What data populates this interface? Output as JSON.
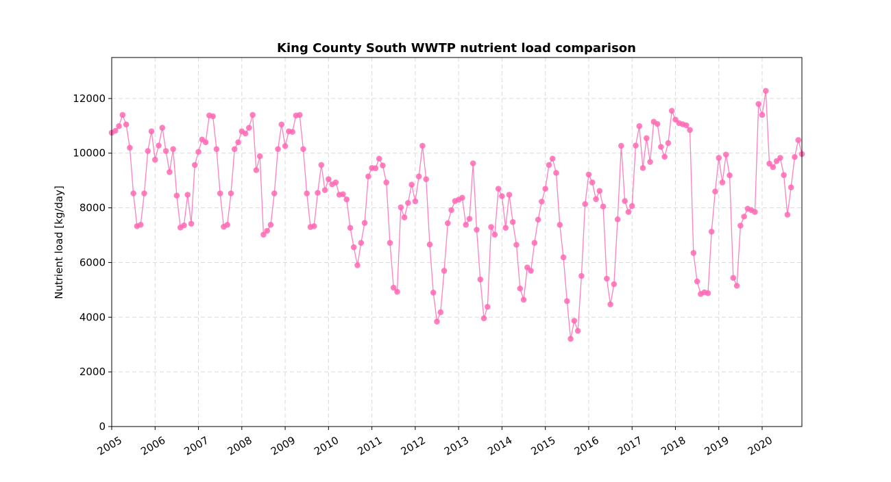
{
  "colors": {
    "series": "#ff69b4",
    "grid": "#d9d9d9",
    "axis": "#000000",
    "background": "#ffffff"
  },
  "chart_data": {
    "type": "line",
    "title": "King County South WWTP nutrient load comparison",
    "xlabel": "",
    "ylabel": "Nutrient load [kg/day]",
    "xlim": [
      "2005-01",
      "2020-12"
    ],
    "ylim": [
      0,
      13500
    ],
    "grid": true,
    "marker": "circle",
    "yticks": [
      0,
      2000,
      4000,
      6000,
      8000,
      10000,
      12000
    ],
    "xticks": [
      "2005",
      "2006",
      "2007",
      "2008",
      "2009",
      "2010",
      "2011",
      "2012",
      "2013",
      "2014",
      "2015",
      "2016",
      "2017",
      "2018",
      "2019",
      "2020"
    ],
    "series": [
      {
        "start": "2005-01",
        "frequency": "monthly",
        "values": [
          10750,
          10820,
          10990,
          11400,
          11050,
          10200,
          8530,
          7330,
          7380,
          8530,
          10080,
          10800,
          9760,
          10280,
          10930,
          10080,
          9310,
          10150,
          8450,
          7280,
          7360,
          8480,
          7420,
          9570,
          10050,
          10500,
          10400,
          11380,
          11350,
          10150,
          8530,
          7310,
          7380,
          8530,
          10150,
          10400,
          10800,
          10720,
          10930,
          11400,
          9380,
          9890,
          7020,
          7160,
          7380,
          8530,
          10150,
          11050,
          10260,
          10800,
          10780,
          11380,
          11400,
          10150,
          8530,
          7300,
          7330,
          8550,
          9570,
          8650,
          9050,
          8860,
          8930,
          8480,
          8500,
          8310,
          7270,
          6560,
          5900,
          6720,
          7450,
          9150,
          9460,
          9450,
          9800,
          9550,
          8930,
          6720,
          5080,
          4930,
          8020,
          7650,
          8180,
          8850,
          8240,
          9150,
          10270,
          9050,
          6660,
          4900,
          3840,
          4180,
          5700,
          7440,
          7920,
          8250,
          8300,
          8370,
          7380,
          7600,
          9630,
          7200,
          5380,
          3960,
          4380,
          7300,
          7020,
          8700,
          8430,
          7270,
          8480,
          7480,
          6650,
          5050,
          4640,
          5820,
          5700,
          6720,
          7570,
          8230,
          8700,
          9570,
          9800,
          9280,
          7380,
          6190,
          4590,
          3210,
          3870,
          3500,
          5510,
          8140,
          9220,
          8930,
          8320,
          8620,
          8050,
          5410,
          4470,
          5210,
          7580,
          10270,
          8250,
          7850,
          8070,
          10280,
          10990,
          9460,
          10550,
          9680,
          11150,
          11070,
          10230,
          9870,
          10370,
          11550,
          11230,
          11100,
          11060,
          11020,
          10850,
          6350,
          5310,
          4850,
          4910,
          4880,
          7130,
          8600,
          9830,
          8930,
          9950,
          9190,
          5440,
          5150,
          7350,
          7680,
          7970,
          7920,
          7850,
          11800,
          11400,
          12280,
          9620,
          9490,
          9710,
          9830,
          9200,
          7750,
          8750,
          9860,
          10480,
          9970
        ]
      }
    ]
  }
}
